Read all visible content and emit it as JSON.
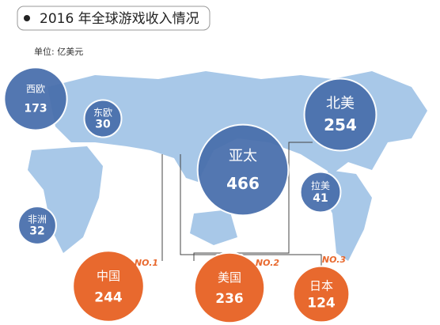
{
  "title": "2016 年全球游戏收入情况",
  "unit": "单位: 亿美元",
  "regions": [
    {
      "name": "西欧",
      "value": 173
    },
    {
      "name": "东欧",
      "value": 30
    },
    {
      "name": "非洲",
      "value": 32
    },
    {
      "name": "亚太",
      "value": 466
    },
    {
      "name": "北美",
      "value": 254
    },
    {
      "name": "拉美",
      "value": 41
    }
  ],
  "top_countries": [
    {
      "rank": "NO.1",
      "name": "中国",
      "value": 244
    },
    {
      "rank": "NO.2",
      "name": "美国",
      "value": 236
    },
    {
      "rank": "NO.3",
      "name": "日本",
      "value": 124
    }
  ]
}
